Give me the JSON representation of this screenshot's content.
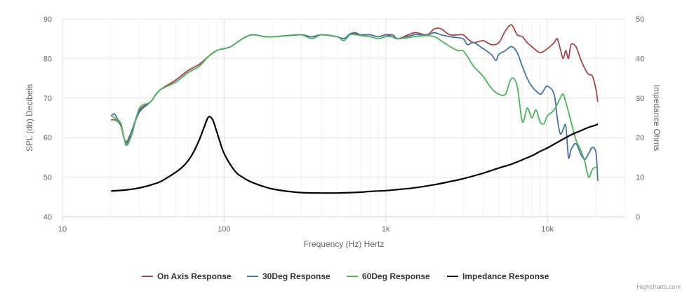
{
  "chart_data": {
    "type": "line",
    "x_scale": "log",
    "xlabel": "Frequency (Hz) Hertz",
    "ylabel_left": "SPL (db) Decibels",
    "ylabel_right": "Impedance Ohms",
    "xlim": [
      10,
      30000
    ],
    "ylim_left": [
      40,
      90
    ],
    "ylim_right": [
      0,
      50
    ],
    "x_ticks": [
      {
        "value": 10,
        "label": "10"
      },
      {
        "value": 100,
        "label": "100"
      },
      {
        "value": 1000,
        "label": "1k"
      },
      {
        "value": 10000,
        "label": "10k"
      }
    ],
    "y_ticks_left": [
      40,
      50,
      60,
      70,
      80,
      90
    ],
    "y_ticks_right": [
      0,
      10,
      20,
      30,
      40,
      50
    ],
    "legend_position": "bottom-center",
    "credit": "Highcharts.com",
    "series": [
      {
        "name": "On Axis Response",
        "color": "#aa4643",
        "axis": "left",
        "points": [
          [
            20,
            64.5
          ],
          [
            21,
            64.5
          ],
          [
            22,
            64
          ],
          [
            23,
            63
          ],
          [
            24,
            60
          ],
          [
            25,
            59
          ],
          [
            27,
            62
          ],
          [
            30,
            67
          ],
          [
            35,
            69
          ],
          [
            40,
            72
          ],
          [
            50,
            74.5
          ],
          [
            60,
            77
          ],
          [
            70,
            78.5
          ],
          [
            80,
            80.5
          ],
          [
            90,
            82
          ],
          [
            100,
            82.5
          ],
          [
            110,
            83
          ],
          [
            130,
            85
          ],
          [
            150,
            86
          ],
          [
            180,
            85.5
          ],
          [
            200,
            85.5
          ],
          [
            250,
            85.8
          ],
          [
            300,
            86
          ],
          [
            350,
            85.5
          ],
          [
            400,
            86
          ],
          [
            500,
            85.5
          ],
          [
            550,
            85
          ],
          [
            600,
            86
          ],
          [
            650,
            86.3
          ],
          [
            700,
            86
          ],
          [
            800,
            86
          ],
          [
            900,
            85.5
          ],
          [
            1000,
            86
          ],
          [
            1100,
            85.5
          ],
          [
            1200,
            85
          ],
          [
            1500,
            86.5
          ],
          [
            1800,
            86
          ],
          [
            2000,
            87.5
          ],
          [
            2200,
            87.5
          ],
          [
            2500,
            86
          ],
          [
            3000,
            86
          ],
          [
            3200,
            85
          ],
          [
            3500,
            84
          ],
          [
            4000,
            84.5
          ],
          [
            4500,
            83.5
          ],
          [
            5000,
            84
          ],
          [
            5500,
            87
          ],
          [
            6000,
            88.5
          ],
          [
            6500,
            86
          ],
          [
            7000,
            85.5
          ],
          [
            7500,
            84
          ],
          [
            8000,
            83
          ],
          [
            9000,
            81.5
          ],
          [
            10000,
            82.5
          ],
          [
            11000,
            84
          ],
          [
            11500,
            85
          ],
          [
            12000,
            82.5
          ],
          [
            12500,
            80
          ],
          [
            13000,
            82
          ],
          [
            13500,
            80
          ],
          [
            14000,
            83.5
          ],
          [
            15000,
            83
          ],
          [
            16000,
            80
          ],
          [
            17000,
            77.5
          ],
          [
            18000,
            76
          ],
          [
            19000,
            75.5
          ],
          [
            20000,
            72
          ],
          [
            20500,
            69
          ]
        ]
      },
      {
        "name": "30Deg Response",
        "color": "#4572a7",
        "axis": "left",
        "points": [
          [
            20,
            65.5
          ],
          [
            21,
            66
          ],
          [
            22,
            64.5
          ],
          [
            23,
            63.5
          ],
          [
            24,
            60
          ],
          [
            25,
            58.5
          ],
          [
            27,
            62
          ],
          [
            30,
            66.5
          ],
          [
            35,
            69
          ],
          [
            40,
            72
          ],
          [
            50,
            74
          ],
          [
            60,
            76.5
          ],
          [
            70,
            78
          ],
          [
            80,
            80.5
          ],
          [
            90,
            82
          ],
          [
            100,
            82.5
          ],
          [
            110,
            83
          ],
          [
            130,
            85
          ],
          [
            150,
            86
          ],
          [
            180,
            85.5
          ],
          [
            200,
            85.5
          ],
          [
            250,
            85.8
          ],
          [
            300,
            86
          ],
          [
            350,
            85.5
          ],
          [
            400,
            86
          ],
          [
            500,
            85.5
          ],
          [
            550,
            85
          ],
          [
            600,
            86.2
          ],
          [
            650,
            86.5
          ],
          [
            700,
            86
          ],
          [
            800,
            86
          ],
          [
            900,
            85.5
          ],
          [
            1000,
            86
          ],
          [
            1100,
            86
          ],
          [
            1200,
            85
          ],
          [
            1500,
            86
          ],
          [
            1800,
            86
          ],
          [
            2000,
            86.5
          ],
          [
            2200,
            86
          ],
          [
            2500,
            85.5
          ],
          [
            3000,
            85
          ],
          [
            3200,
            83.5
          ],
          [
            3500,
            84
          ],
          [
            4000,
            82.5
          ],
          [
            4500,
            81
          ],
          [
            4800,
            79.5
          ],
          [
            5000,
            81
          ],
          [
            5500,
            82
          ],
          [
            6000,
            83
          ],
          [
            6500,
            81.5
          ],
          [
            7000,
            78
          ],
          [
            7500,
            75
          ],
          [
            8000,
            73
          ],
          [
            9000,
            71
          ],
          [
            9500,
            72
          ],
          [
            10000,
            73
          ],
          [
            11000,
            71
          ],
          [
            11500,
            65
          ],
          [
            12000,
            61
          ],
          [
            12500,
            62
          ],
          [
            13000,
            63
          ],
          [
            13500,
            55
          ],
          [
            14000,
            57
          ],
          [
            15000,
            58.5
          ],
          [
            16000,
            56
          ],
          [
            17000,
            54.5
          ],
          [
            18000,
            56
          ],
          [
            19000,
            57.5
          ],
          [
            20000,
            56
          ],
          [
            20500,
            49
          ]
        ]
      },
      {
        "name": "60Deg Response",
        "color": "#4cb45a",
        "axis": "left",
        "points": [
          [
            20,
            65.5
          ],
          [
            21,
            65
          ],
          [
            22,
            64
          ],
          [
            23,
            63.5
          ],
          [
            24,
            60
          ],
          [
            25,
            58
          ],
          [
            27,
            61
          ],
          [
            30,
            67.5
          ],
          [
            35,
            69
          ],
          [
            40,
            72
          ],
          [
            50,
            74
          ],
          [
            60,
            76.5
          ],
          [
            70,
            78
          ],
          [
            80,
            80.5
          ],
          [
            90,
            82
          ],
          [
            100,
            82.5
          ],
          [
            110,
            83
          ],
          [
            130,
            85
          ],
          [
            150,
            86
          ],
          [
            180,
            85.5
          ],
          [
            200,
            85.5
          ],
          [
            250,
            85.8
          ],
          [
            300,
            86
          ],
          [
            350,
            85
          ],
          [
            400,
            86
          ],
          [
            500,
            85.5
          ],
          [
            550,
            84.5
          ],
          [
            600,
            86
          ],
          [
            650,
            86
          ],
          [
            700,
            85.8
          ],
          [
            800,
            85.5
          ],
          [
            900,
            85
          ],
          [
            1000,
            85.5
          ],
          [
            1100,
            85.5
          ],
          [
            1200,
            85
          ],
          [
            1500,
            85.5
          ],
          [
            1800,
            85.8
          ],
          [
            2000,
            85.5
          ],
          [
            2200,
            84.5
          ],
          [
            2500,
            83
          ],
          [
            2800,
            82
          ],
          [
            3000,
            82
          ],
          [
            3200,
            80.5
          ],
          [
            3500,
            78
          ],
          [
            4000,
            75.5
          ],
          [
            4500,
            72.5
          ],
          [
            5000,
            71
          ],
          [
            5500,
            71
          ],
          [
            6000,
            75
          ],
          [
            6500,
            73
          ],
          [
            7000,
            64
          ],
          [
            7500,
            67.5
          ],
          [
            8000,
            65
          ],
          [
            8500,
            67
          ],
          [
            9000,
            64
          ],
          [
            9500,
            63.5
          ],
          [
            10000,
            65.5
          ],
          [
            11000,
            67
          ],
          [
            12000,
            70
          ],
          [
            12500,
            71
          ],
          [
            13000,
            69
          ],
          [
            14000,
            64
          ],
          [
            15000,
            59.5
          ],
          [
            16000,
            57
          ],
          [
            17000,
            54
          ],
          [
            18000,
            50
          ],
          [
            19000,
            52
          ],
          [
            20000,
            52.5
          ],
          [
            20500,
            52
          ]
        ]
      },
      {
        "name": "Impedance Response",
        "color": "#000000",
        "axis": "right",
        "points": [
          [
            20,
            6.5
          ],
          [
            25,
            6.8
          ],
          [
            30,
            7.3
          ],
          [
            35,
            8
          ],
          [
            40,
            8.8
          ],
          [
            45,
            10
          ],
          [
            50,
            11.2
          ],
          [
            55,
            12.5
          ],
          [
            60,
            14.2
          ],
          [
            65,
            16.5
          ],
          [
            70,
            19.3
          ],
          [
            75,
            22.5
          ],
          [
            80,
            25.2
          ],
          [
            85,
            24.5
          ],
          [
            90,
            21.5
          ],
          [
            95,
            18.5
          ],
          [
            100,
            16
          ],
          [
            110,
            13
          ],
          [
            120,
            11
          ],
          [
            130,
            10
          ],
          [
            140,
            9.2
          ],
          [
            160,
            8.2
          ],
          [
            180,
            7.5
          ],
          [
            200,
            7
          ],
          [
            250,
            6.4
          ],
          [
            300,
            6.1
          ],
          [
            400,
            6
          ],
          [
            500,
            6
          ],
          [
            600,
            6.1
          ],
          [
            700,
            6.2
          ],
          [
            800,
            6.4
          ],
          [
            1000,
            6.6
          ],
          [
            1200,
            6.9
          ],
          [
            1500,
            7.3
          ],
          [
            2000,
            8.1
          ],
          [
            2500,
            8.9
          ],
          [
            3000,
            9.6
          ],
          [
            4000,
            11
          ],
          [
            5000,
            12.3
          ],
          [
            6000,
            13.3
          ],
          [
            7000,
            14.4
          ],
          [
            8000,
            15.4
          ],
          [
            9000,
            16.5
          ],
          [
            10000,
            17.4
          ],
          [
            12000,
            19.2
          ],
          [
            14000,
            20.7
          ],
          [
            16000,
            21.7
          ],
          [
            18000,
            22.6
          ],
          [
            20000,
            23.2
          ],
          [
            20500,
            23.5
          ]
        ]
      }
    ]
  }
}
